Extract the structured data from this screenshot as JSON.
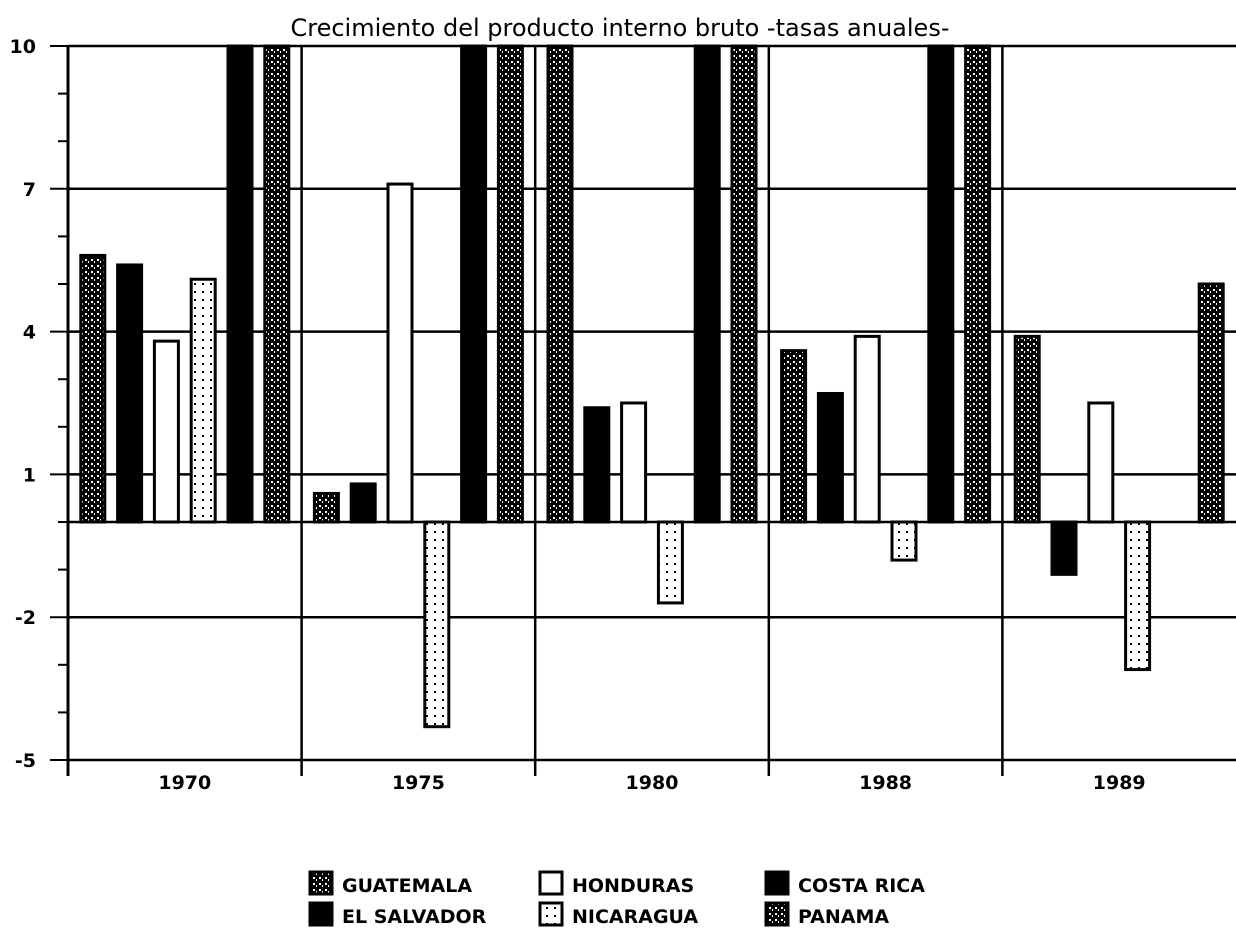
{
  "chart_data": {
    "type": "bar",
    "title": "Crecimiento del producto interno bruto -tasas anuales-",
    "xlabel": "",
    "ylabel": "",
    "ylim": [
      -5,
      10
    ],
    "yticks": [
      10,
      7,
      4,
      1,
      -2,
      -5
    ],
    "grid": true,
    "legend_position": "bottom",
    "categories": [
      "1970",
      "1975",
      "1980",
      "1988",
      "1989"
    ],
    "series": [
      {
        "name": "GUATEMALA",
        "fill": "dotted",
        "values": [
          5.6,
          0.6,
          10,
          3.6,
          3.9
        ]
      },
      {
        "name": "EL SALVADOR",
        "fill": "solid",
        "values": [
          5.4,
          0.8,
          2.4,
          2.7,
          -1.1
        ]
      },
      {
        "name": "HONDURAS",
        "fill": "hollow",
        "values": [
          3.8,
          7.1,
          2.5,
          3.9,
          2.5
        ]
      },
      {
        "name": "NICARAGUA",
        "fill": "dotted-hollow",
        "values": [
          5.1,
          -4.3,
          -1.7,
          -0.8,
          -3.1
        ]
      },
      {
        "name": "COSTA RICA",
        "fill": "solid",
        "values": [
          10,
          10,
          10,
          10,
          0
        ]
      },
      {
        "name": "PANAMA",
        "fill": "dotted",
        "values": [
          10,
          10,
          10,
          10,
          5.0
        ]
      }
    ]
  }
}
